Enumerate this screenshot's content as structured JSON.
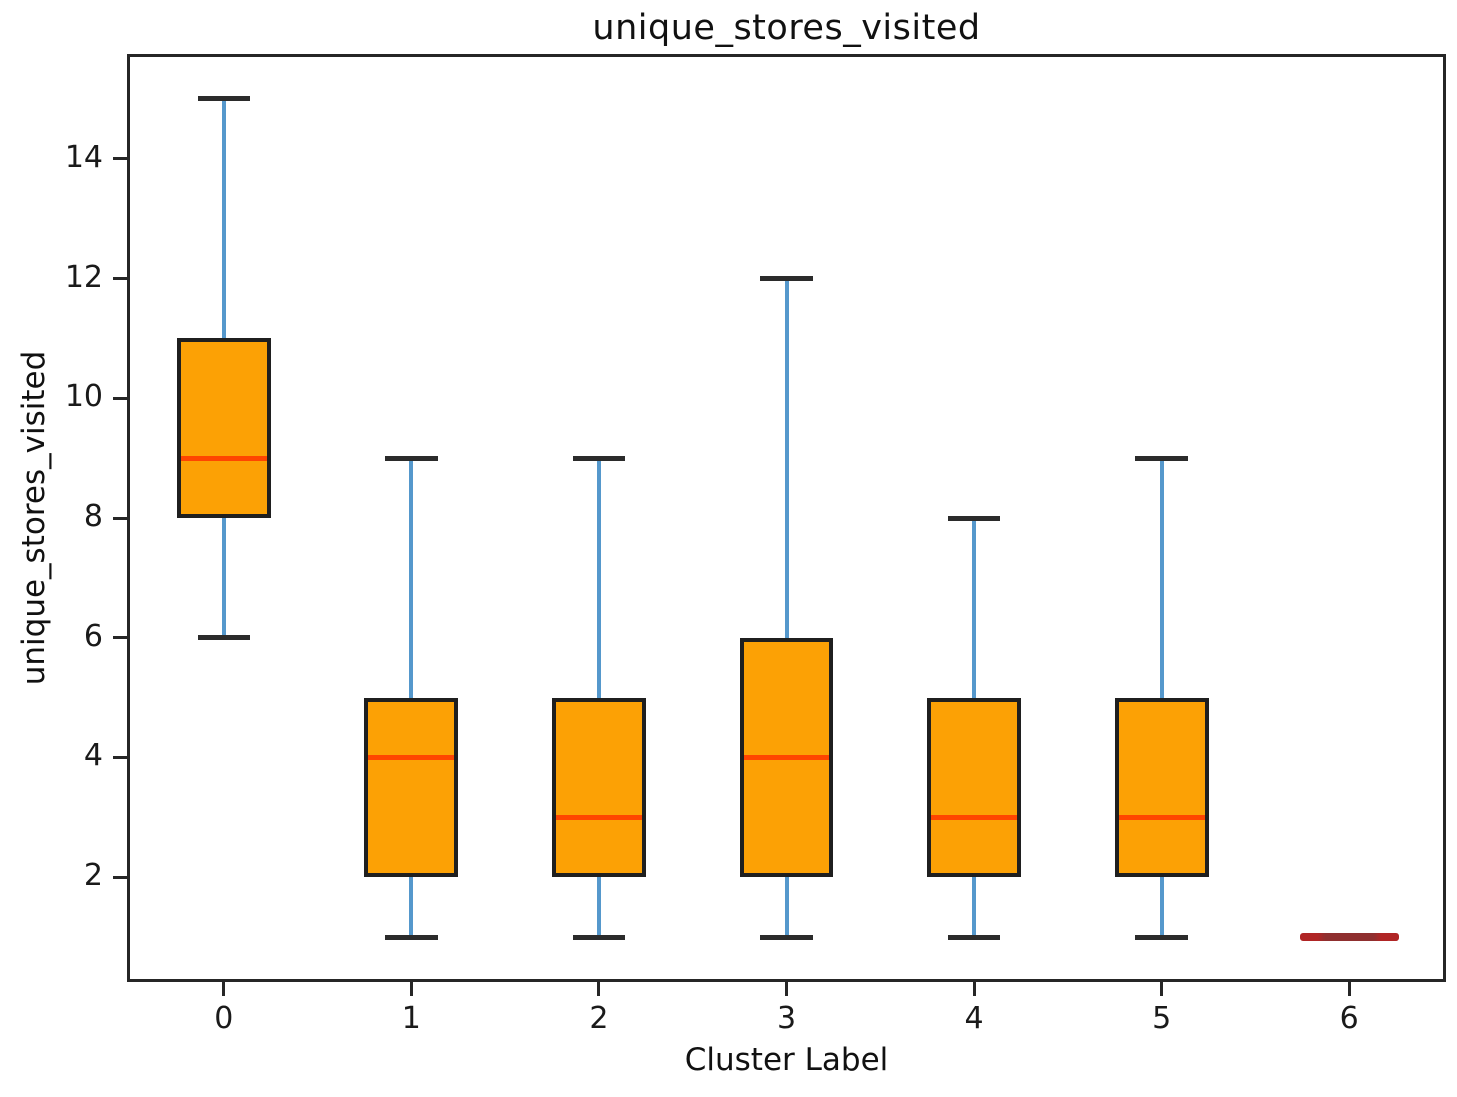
{
  "figure": {
    "title": "unique_stores_visited"
  },
  "chart_data": {
    "type": "boxplot",
    "title": "unique_stores_visited",
    "xlabel": "Cluster Label",
    "ylabel": "unique_stores_visited",
    "categories": [
      "0",
      "1",
      "2",
      "3",
      "4",
      "5",
      "6"
    ],
    "series": [
      {
        "cluster": "0",
        "whislo": 6,
        "q1": 8,
        "med": 9,
        "q3": 11,
        "whishi": 15
      },
      {
        "cluster": "1",
        "whislo": 1,
        "q1": 2,
        "med": 4,
        "q3": 5,
        "whishi": 9
      },
      {
        "cluster": "2",
        "whislo": 1,
        "q1": 2,
        "med": 3,
        "q3": 5,
        "whishi": 9
      },
      {
        "cluster": "3",
        "whislo": 1,
        "q1": 2,
        "med": 4,
        "q3": 6,
        "whishi": 12
      },
      {
        "cluster": "4",
        "whislo": 1,
        "q1": 2,
        "med": 3,
        "q3": 5,
        "whishi": 8
      },
      {
        "cluster": "5",
        "whislo": 1,
        "q1": 2,
        "med": 3,
        "q3": 5,
        "whishi": 9
      },
      {
        "cluster": "6",
        "whislo": 1,
        "q1": 1,
        "med": 1,
        "q3": 1,
        "whishi": 1
      }
    ],
    "yticks": [
      2,
      4,
      6,
      8,
      10,
      12,
      14
    ],
    "ylim": [
      0.3,
      15.7
    ],
    "xlim": [
      0.5,
      7.5
    ],
    "grid": false,
    "legend": "none",
    "layout": {
      "box_width_units": 0.5,
      "cap_width_units": 0.28,
      "degenerate_width_units": 0.53
    },
    "colors": {
      "box_fill": "#FCA105",
      "box_edge": "#1f1f1f",
      "median": "#FF4500",
      "whisker": "#5598CC",
      "cap": "#2b2b2b",
      "degenerate_edge": "#B02525",
      "degenerate_core": "#8F2F2F",
      "frame": "#262626",
      "text": "#1a1a1a"
    }
  }
}
